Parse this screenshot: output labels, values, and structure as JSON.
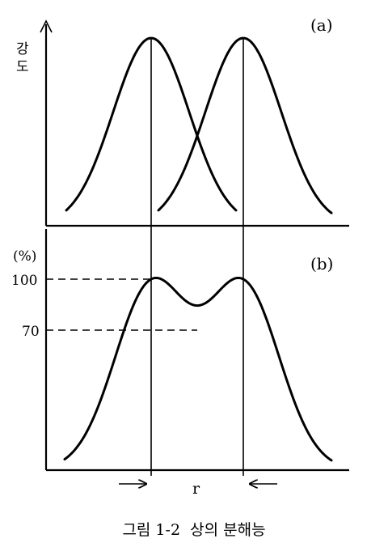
{
  "panel_a": {
    "label": "(a)",
    "y_axis_label": "강도"
  },
  "panel_b": {
    "label": "(b)",
    "unit_label": "(%)",
    "tick_100": "100",
    "tick_70": "70",
    "resolution_label": "r"
  },
  "caption": "그림 1-2  상의 분해능"
}
